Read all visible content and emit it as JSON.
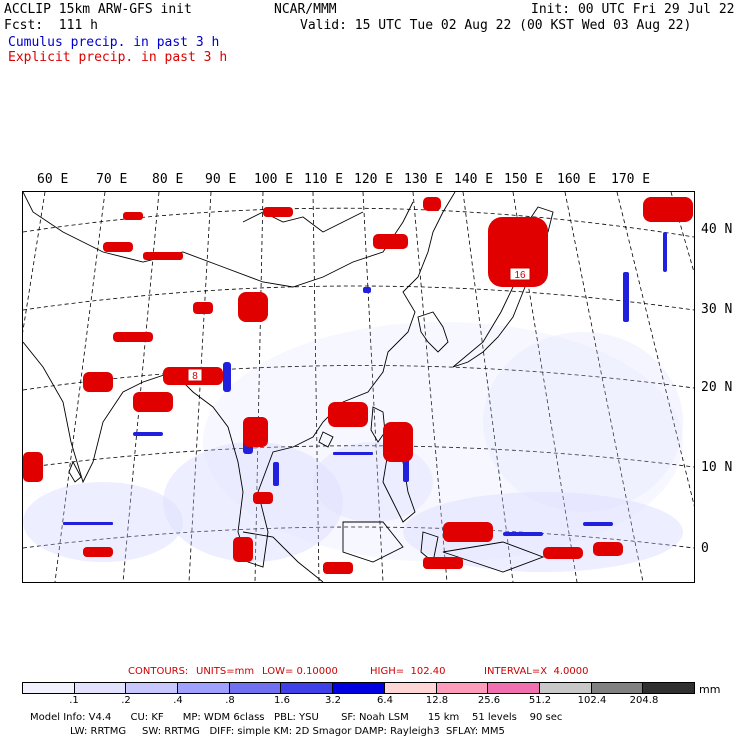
{
  "header": {
    "model_title": "ACCLIP 15km ARW-GFS init",
    "org": "NCAR/MMM",
    "init": "Init: 00 UTC Fri 29 Jul 22",
    "forecast": "Fcst:  111 h",
    "valid": "Valid: 15 UTC Tue 02 Aug 22 (00 KST Wed 03 Aug 22)",
    "legend_cumulus": "Cumulus precip. in past 3 h",
    "legend_explicit": "Explicit precip. in past 3 h"
  },
  "colors": {
    "cumulus": "#0000cc",
    "explicit": "#dd0000",
    "coastline": "#000000",
    "grid": "#000000"
  },
  "map": {
    "lon_labels": [
      "60 E",
      "70 E",
      "80 E",
      "90 E",
      "100 E",
      "110 E",
      "120 E",
      "130 E",
      "140 E",
      "150 E",
      "160 E",
      "170 E"
    ],
    "lat_labels": [
      "40 N",
      "30 N",
      "20 N",
      "10 N",
      "0"
    ],
    "max_labels": [
      "8",
      "16"
    ]
  },
  "contours": {
    "label": "CONTOURS:",
    "units": "UNITS=mm",
    "low": "LOW= 0.10000",
    "high": "HIGH=  102.40",
    "interval": "INTERVAL=X  4.0000"
  },
  "colorbar": {
    "colors": [
      "#ffffff",
      "#ffffff",
      "#f2f2ff",
      "#e2e2ff",
      "#c8c8ff",
      "#a0a0ff",
      "#7070f0",
      "#4040e8",
      "#0000e0",
      "#ffd6d6",
      "#ff9cbc",
      "#f070b0",
      "#c8c8c8",
      "#808080",
      "#303030",
      "#d8a8ff"
    ],
    "ticks": [
      ".1",
      ".2",
      ".4",
      ".8",
      "1.6",
      "3.2",
      "6.4",
      "12.8",
      "25.6",
      "51.2",
      "102.4",
      "204.8"
    ],
    "units": "mm"
  },
  "model_info": {
    "line1": "Model Info: V4.4      CU: KF      MP: WDM 6class   PBL: YSU       SF: Noah LSM      15 km    51 levels    90 sec",
    "line2": "LW: RRTMG     SW: RRTMG   DIFF: simple KM: 2D Smagor DAMP: Rayleigh3  SFLAY: MM5"
  }
}
